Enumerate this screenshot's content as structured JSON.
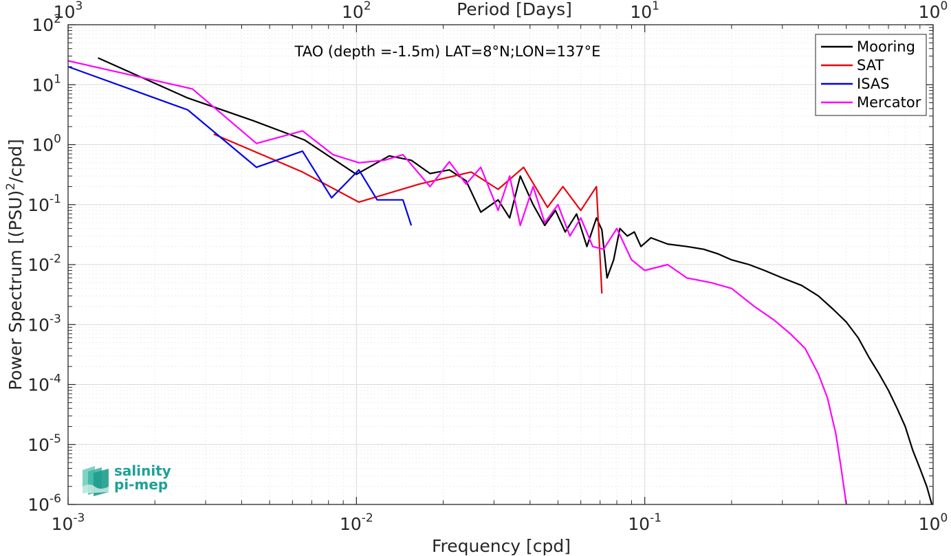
{
  "chart_data": {
    "type": "line",
    "title": "TAO (depth =-1.5m) LAT=8°N;LON=137°E",
    "xlabel": "Frequency [cpd]",
    "ylabel": "Power Spectrum [(PSU)²/cpd]",
    "ylabel_parts": {
      "pre": "Power Spectrum [(PSU)",
      "sup": "2",
      "post": "/cpd]"
    },
    "top_xlabel": "Period [Days]",
    "xscale": "log",
    "yscale": "log",
    "xlim": [
      0.001,
      1
    ],
    "ylim": [
      1e-06,
      100
    ],
    "grid": true,
    "legend_position": "top-right",
    "x_ticks": [
      {
        "value": 0.001,
        "base": "10",
        "exp": "-3"
      },
      {
        "value": 0.01,
        "base": "10",
        "exp": "-2"
      },
      {
        "value": 0.1,
        "base": "10",
        "exp": "-1"
      },
      {
        "value": 1,
        "base": "10",
        "exp": "0"
      }
    ],
    "y_ticks": [
      {
        "value": 1e-06,
        "base": "10",
        "exp": "-6"
      },
      {
        "value": 1e-05,
        "base": "10",
        "exp": "-5"
      },
      {
        "value": 0.0001,
        "base": "10",
        "exp": "-4"
      },
      {
        "value": 0.001,
        "base": "10",
        "exp": "-3"
      },
      {
        "value": 0.01,
        "base": "10",
        "exp": "-2"
      },
      {
        "value": 0.1,
        "base": "10",
        "exp": "-1"
      },
      {
        "value": 1,
        "base": "10",
        "exp": "0"
      },
      {
        "value": 10,
        "base": "10",
        "exp": "1"
      },
      {
        "value": 100,
        "base": "10",
        "exp": "2"
      }
    ],
    "top_ticks": [
      {
        "value": 0.001,
        "base": "10",
        "exp": "3"
      },
      {
        "value": 0.01,
        "base": "10",
        "exp": "2"
      },
      {
        "value": 0.1,
        "base": "10",
        "exp": "1"
      },
      {
        "value": 1,
        "base": "10",
        "exp": "0"
      }
    ],
    "series": [
      {
        "name": "Mooring",
        "color": "#000000",
        "x": [
          0.00127,
          0.0026,
          0.0044,
          0.0066,
          0.01,
          0.013,
          0.0155,
          0.018,
          0.021,
          0.024,
          0.027,
          0.031,
          0.034,
          0.037,
          0.041,
          0.045,
          0.049,
          0.053,
          0.058,
          0.063,
          0.068,
          0.071,
          0.074,
          0.078,
          0.082,
          0.087,
          0.092,
          0.097,
          0.105,
          0.12,
          0.14,
          0.16,
          0.18,
          0.2,
          0.23,
          0.26,
          0.3,
          0.35,
          0.4,
          0.45,
          0.5,
          0.55,
          0.6,
          0.65,
          0.7,
          0.75,
          0.8,
          0.85,
          0.9,
          0.95,
          0.99
        ],
        "y": [
          28,
          6,
          2.5,
          1.2,
          0.32,
          0.65,
          0.55,
          0.33,
          0.38,
          0.25,
          0.075,
          0.12,
          0.06,
          0.3,
          0.1,
          0.045,
          0.08,
          0.035,
          0.07,
          0.02,
          0.06,
          0.038,
          0.006,
          0.012,
          0.04,
          0.03,
          0.035,
          0.02,
          0.028,
          0.022,
          0.02,
          0.018,
          0.015,
          0.012,
          0.01,
          0.008,
          0.006,
          0.0045,
          0.003,
          0.0018,
          0.0011,
          0.0006,
          0.00028,
          0.00015,
          8e-05,
          4e-05,
          2e-05,
          8e-06,
          4e-06,
          2e-06,
          1e-06
        ]
      },
      {
        "name": "SAT",
        "color": "#e8000b",
        "x": [
          0.0032,
          0.0065,
          0.0102,
          0.0165,
          0.025,
          0.031,
          0.038,
          0.046,
          0.052,
          0.06,
          0.068,
          0.071
        ],
        "y": [
          1.5,
          0.35,
          0.11,
          0.22,
          0.35,
          0.18,
          0.42,
          0.09,
          0.2,
          0.08,
          0.2,
          0.0033
        ]
      },
      {
        "name": "ISAS",
        "color": "#0000ee",
        "x": [
          0.001,
          0.0026,
          0.0045,
          0.0065,
          0.0082,
          0.0102,
          0.0118,
          0.0145,
          0.0155
        ],
        "y": [
          20,
          3.8,
          0.42,
          0.78,
          0.13,
          0.38,
          0.12,
          0.12,
          0.045
        ]
      },
      {
        "name": "Mercator",
        "color": "#ff00ff",
        "x": [
          0.001,
          0.0027,
          0.0045,
          0.0065,
          0.0083,
          0.0102,
          0.0125,
          0.0145,
          0.018,
          0.021,
          0.024,
          0.027,
          0.031,
          0.034,
          0.037,
          0.041,
          0.045,
          0.05,
          0.055,
          0.06,
          0.066,
          0.072,
          0.08,
          0.09,
          0.1,
          0.12,
          0.14,
          0.17,
          0.2,
          0.24,
          0.28,
          0.32,
          0.36,
          0.4,
          0.43,
          0.46,
          0.48,
          0.5
        ],
        "y": [
          25,
          8.5,
          1.05,
          1.7,
          0.68,
          0.5,
          0.55,
          0.68,
          0.2,
          0.52,
          0.22,
          0.42,
          0.08,
          0.3,
          0.045,
          0.2,
          0.05,
          0.1,
          0.03,
          0.06,
          0.02,
          0.018,
          0.04,
          0.012,
          0.008,
          0.01,
          0.006,
          0.005,
          0.004,
          0.002,
          0.0012,
          0.0007,
          0.0004,
          0.00015,
          6e-05,
          1.5e-05,
          4e-06,
          1e-06
        ]
      }
    ]
  },
  "logo": {
    "line1": "salinity",
    "line2": "pi-mep"
  }
}
